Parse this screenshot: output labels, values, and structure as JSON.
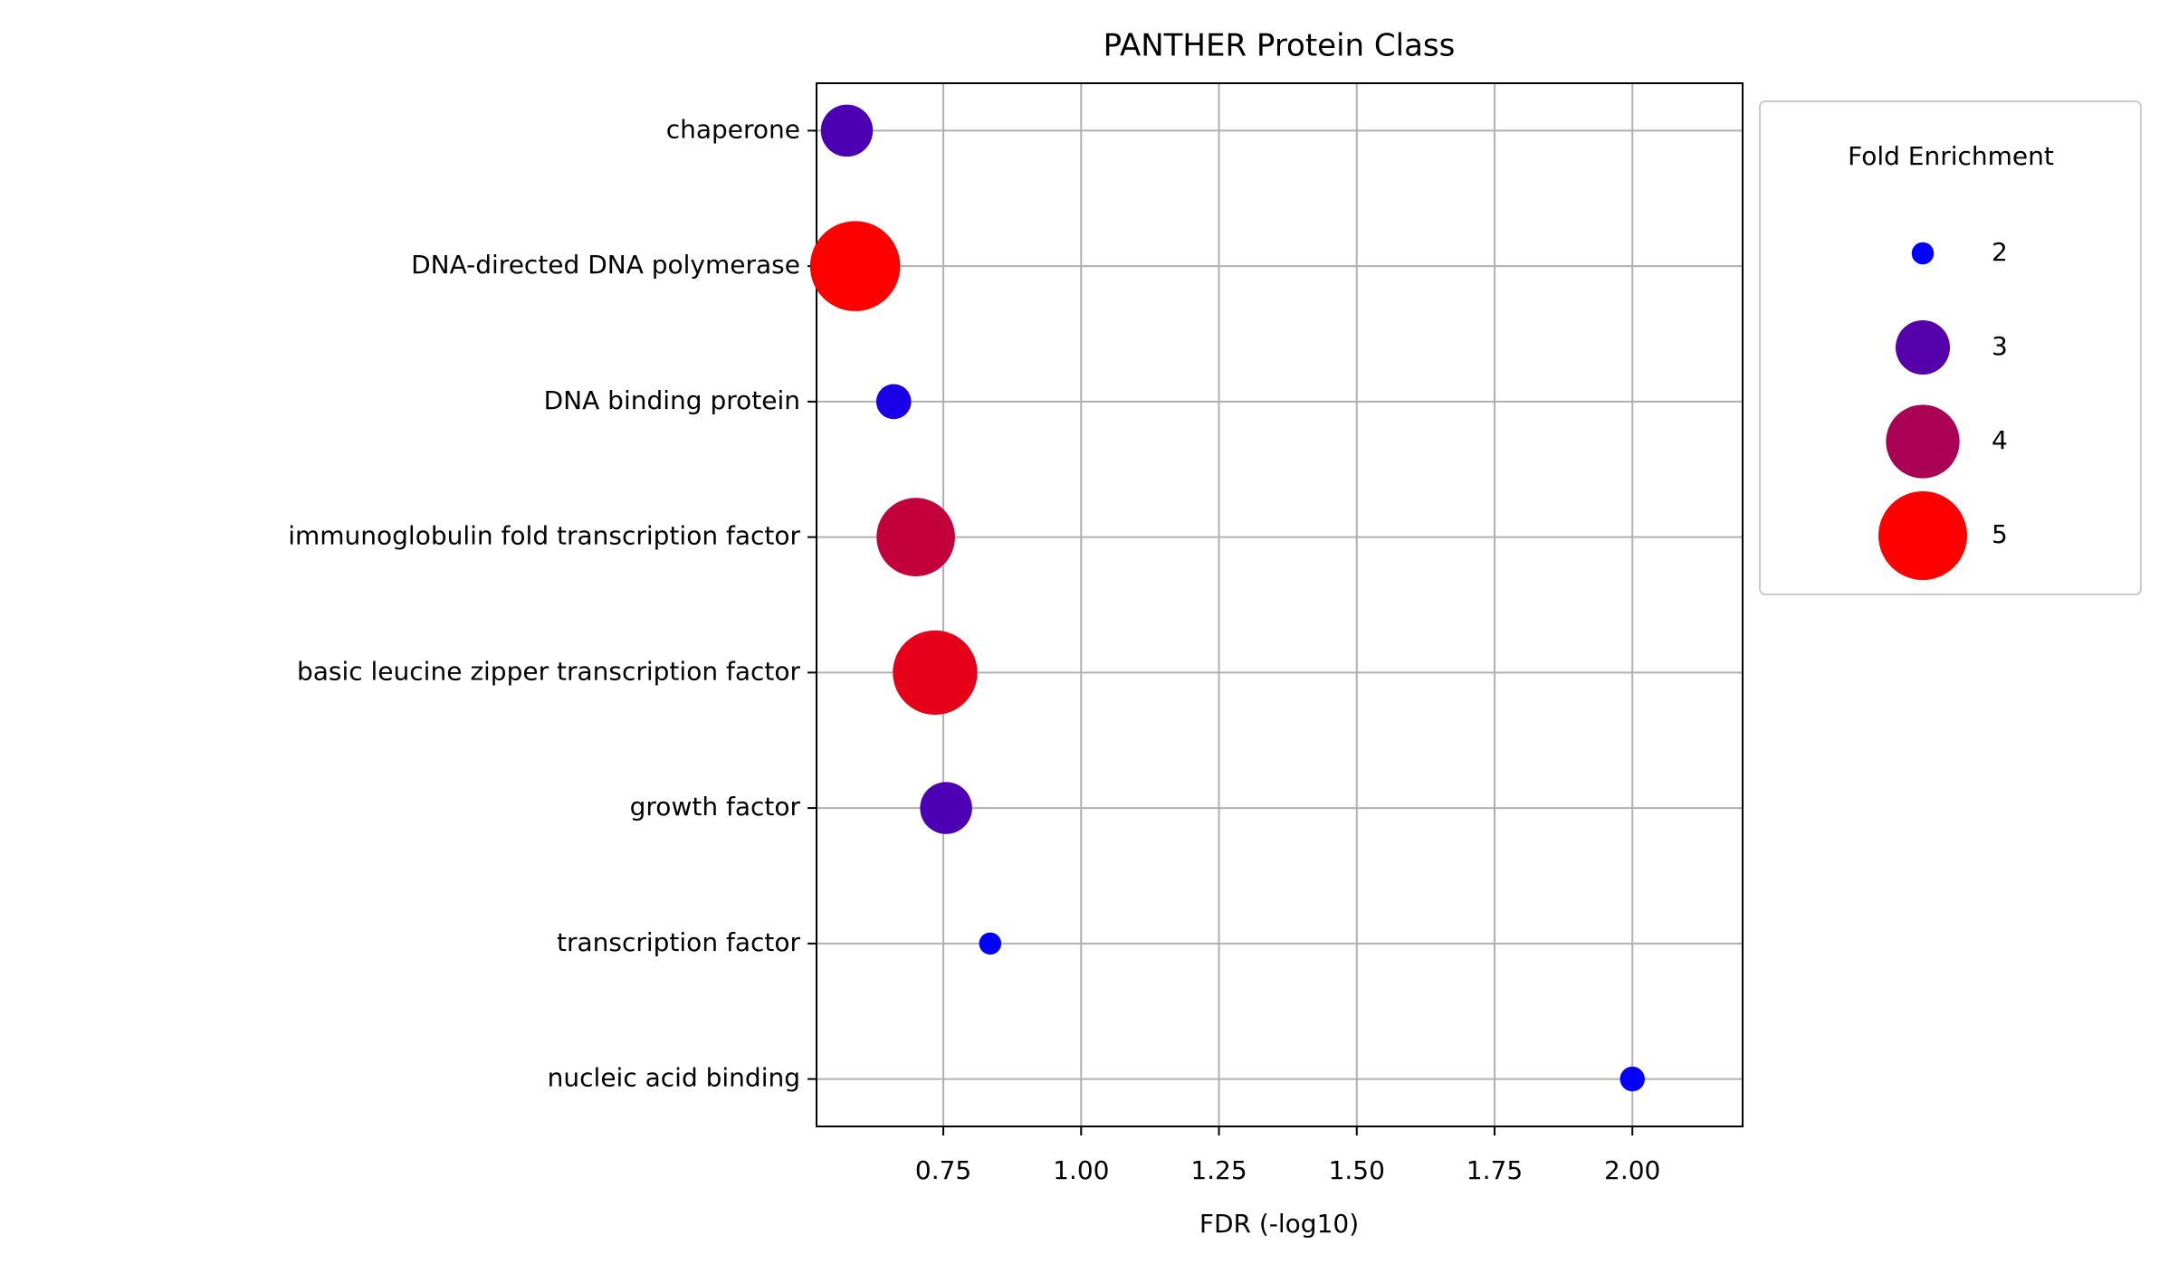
{
  "chart_data": {
    "type": "scatter",
    "title": "PANTHER Protein Class",
    "x_label": "FDR (-log10)",
    "categories": [
      "chaperone",
      "DNA-directed DNA polymerase",
      "DNA binding protein",
      "immunoglobulin fold transcription factor",
      "basic leucine zipper transcription factor",
      "growth factor",
      "transcription factor",
      "nucleic acid binding"
    ],
    "x": [
      0.575,
      0.59,
      0.66,
      0.7,
      0.735,
      0.755,
      0.835,
      2.0
    ],
    "sizes": [
      2.9,
      5.1,
      2.3,
      4.3,
      4.7,
      2.9,
      2.0,
      2.05
    ],
    "xlim": [
      0.52,
      2.2
    ],
    "xticks": [
      {
        "value": 0.75,
        "label": "0.75"
      },
      {
        "value": 1.0,
        "label": "1.00"
      },
      {
        "value": 1.25,
        "label": "1.25"
      },
      {
        "value": 1.5,
        "label": "1.50"
      },
      {
        "value": 1.75,
        "label": "1.75"
      },
      {
        "value": 2.0,
        "label": "2.00"
      }
    ],
    "grid": true,
    "color_low": "#0000ff",
    "color_high": "#ff0000",
    "legend": {
      "title": "Fold Enrichment",
      "values": [
        2,
        3,
        4,
        5
      ]
    }
  }
}
